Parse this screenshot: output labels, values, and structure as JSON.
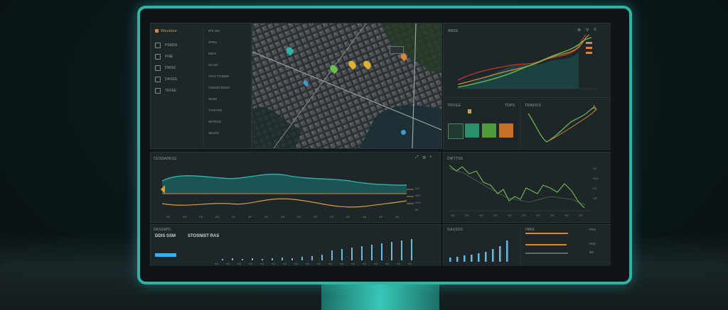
{
  "colors": {
    "accent": "#2fb3a6",
    "green": "#6cc04a",
    "orange": "#d2873a",
    "teal": "#2a8f8a",
    "blue": "#3a9ad9",
    "red": "#b83a2a"
  },
  "sidebar": {
    "title": "Wesdour",
    "items": [
      {
        "label": "PSMSS",
        "icon": "dashboard-icon"
      },
      {
        "label": "FINE",
        "icon": "truck-icon"
      },
      {
        "label": "DWSS",
        "icon": "box-icon"
      },
      {
        "label": "DASSS",
        "icon": "gear-icon"
      },
      {
        "label": "TEFEE",
        "icon": "chart-icon"
      }
    ]
  },
  "list": {
    "items": [
      "IPS NIS",
      "SPES",
      "MIRS",
      "SAAIN",
      "TATS TITMMS",
      "TOWER ERSS",
      "SIMM",
      "TTAFAFE",
      "SETRSS",
      "SEAPS"
    ]
  },
  "top_right_chart": {
    "title": "ANSS",
    "icons": [
      "zoom-icon",
      "filter-icon",
      "menu-icon"
    ]
  },
  "kpi": {
    "title": "TRIVEE",
    "right_label": "TOPS"
  },
  "mini_line": {
    "title": "TRAVIOS"
  },
  "wide_chart": {
    "title": "CUSSADESS",
    "x_ticks": [
      "AS",
      "AN",
      "SS",
      "AN",
      "S2",
      "AS",
      "AS",
      "AS",
      "AS",
      "AS",
      "AS",
      "AS",
      "AS",
      "AS",
      "AS"
    ],
    "right_ticks": [
      "2/S",
      "ADF",
      "SGS",
      "80"
    ]
  },
  "right_chart": {
    "title": "DWTTSS",
    "y_ticks": [
      "SC",
      "ASS",
      "SS",
      "CR"
    ],
    "x_ticks": [
      "SO",
      "SS",
      "SS",
      "SS",
      "SS",
      "SS",
      "SS",
      "SS",
      "SS",
      "SS"
    ]
  },
  "bottom_left": {
    "title": "DRSSMTL",
    "headline_a": "DDIS SSM",
    "headline_b": "STOSNIST RAS",
    "x_ticks": [
      "AS",
      "AS",
      "AS",
      "AS",
      "AS",
      "AS",
      "AS",
      "AS",
      "AS",
      "AS",
      "AS",
      "AS",
      "AS",
      "AS",
      "AS",
      "AS",
      "AS",
      "AS"
    ]
  },
  "bottom_mid": {
    "title": "GAUSSS"
  },
  "bottom_right": {
    "title": "INRS",
    "values": [
      "RSS",
      "RSS",
      "BS"
    ]
  }
}
